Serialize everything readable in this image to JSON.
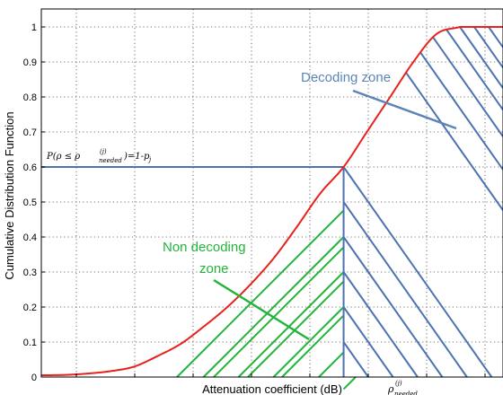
{
  "chart_data": {
    "type": "line",
    "xlabel": "Attenuation coefficient (dB)",
    "ylabel": "Cumulative Distribution Function",
    "ylim": [
      0,
      1
    ],
    "y_ticks": [
      "0",
      "0.1",
      "0.2",
      "0.3",
      "0.4",
      "0.5",
      "0.6",
      "0.7",
      "0.8",
      "0.9",
      "1"
    ],
    "grid": true,
    "series": [
      {
        "name": "",
        "color": "#e8211c",
        "x": [
          0,
          1,
          2,
          3,
          4,
          5,
          6,
          7,
          8,
          9,
          10,
          11,
          12,
          13,
          14,
          15,
          16,
          17,
          18
        ],
        "y": [
          0.005,
          0.006,
          0.01,
          0.017,
          0.03,
          0.06,
          0.095,
          0.145,
          0.2,
          0.265,
          0.34,
          0.43,
          0.525,
          0.6,
          0.7,
          0.8,
          0.9,
          0.98,
          1.0
        ]
      }
    ],
    "threshold": {
      "x": 13,
      "y": 0.6,
      "x_label_main": "ρ",
      "x_label_sup": "(j)",
      "x_label_sub": "needed",
      "y_label_prefix": "P(ρ ≤ ρ",
      "y_label_sup": "(j)",
      "y_label_sub": "needed",
      "y_label_suffix": ")=1-p",
      "y_label_suffix_sub": "j"
    },
    "annotations": {
      "decoding": {
        "line1": "Decoding zone",
        "color": "#5b84b9"
      },
      "non_decoding": {
        "line1": "Non decoding",
        "line2": "zone",
        "color": "#22b43b"
      }
    },
    "colors": {
      "curve": "#e8211c",
      "decoding": "#4c72b0",
      "non_decoding": "#22b43b",
      "threshold": "#4c72b0"
    }
  }
}
